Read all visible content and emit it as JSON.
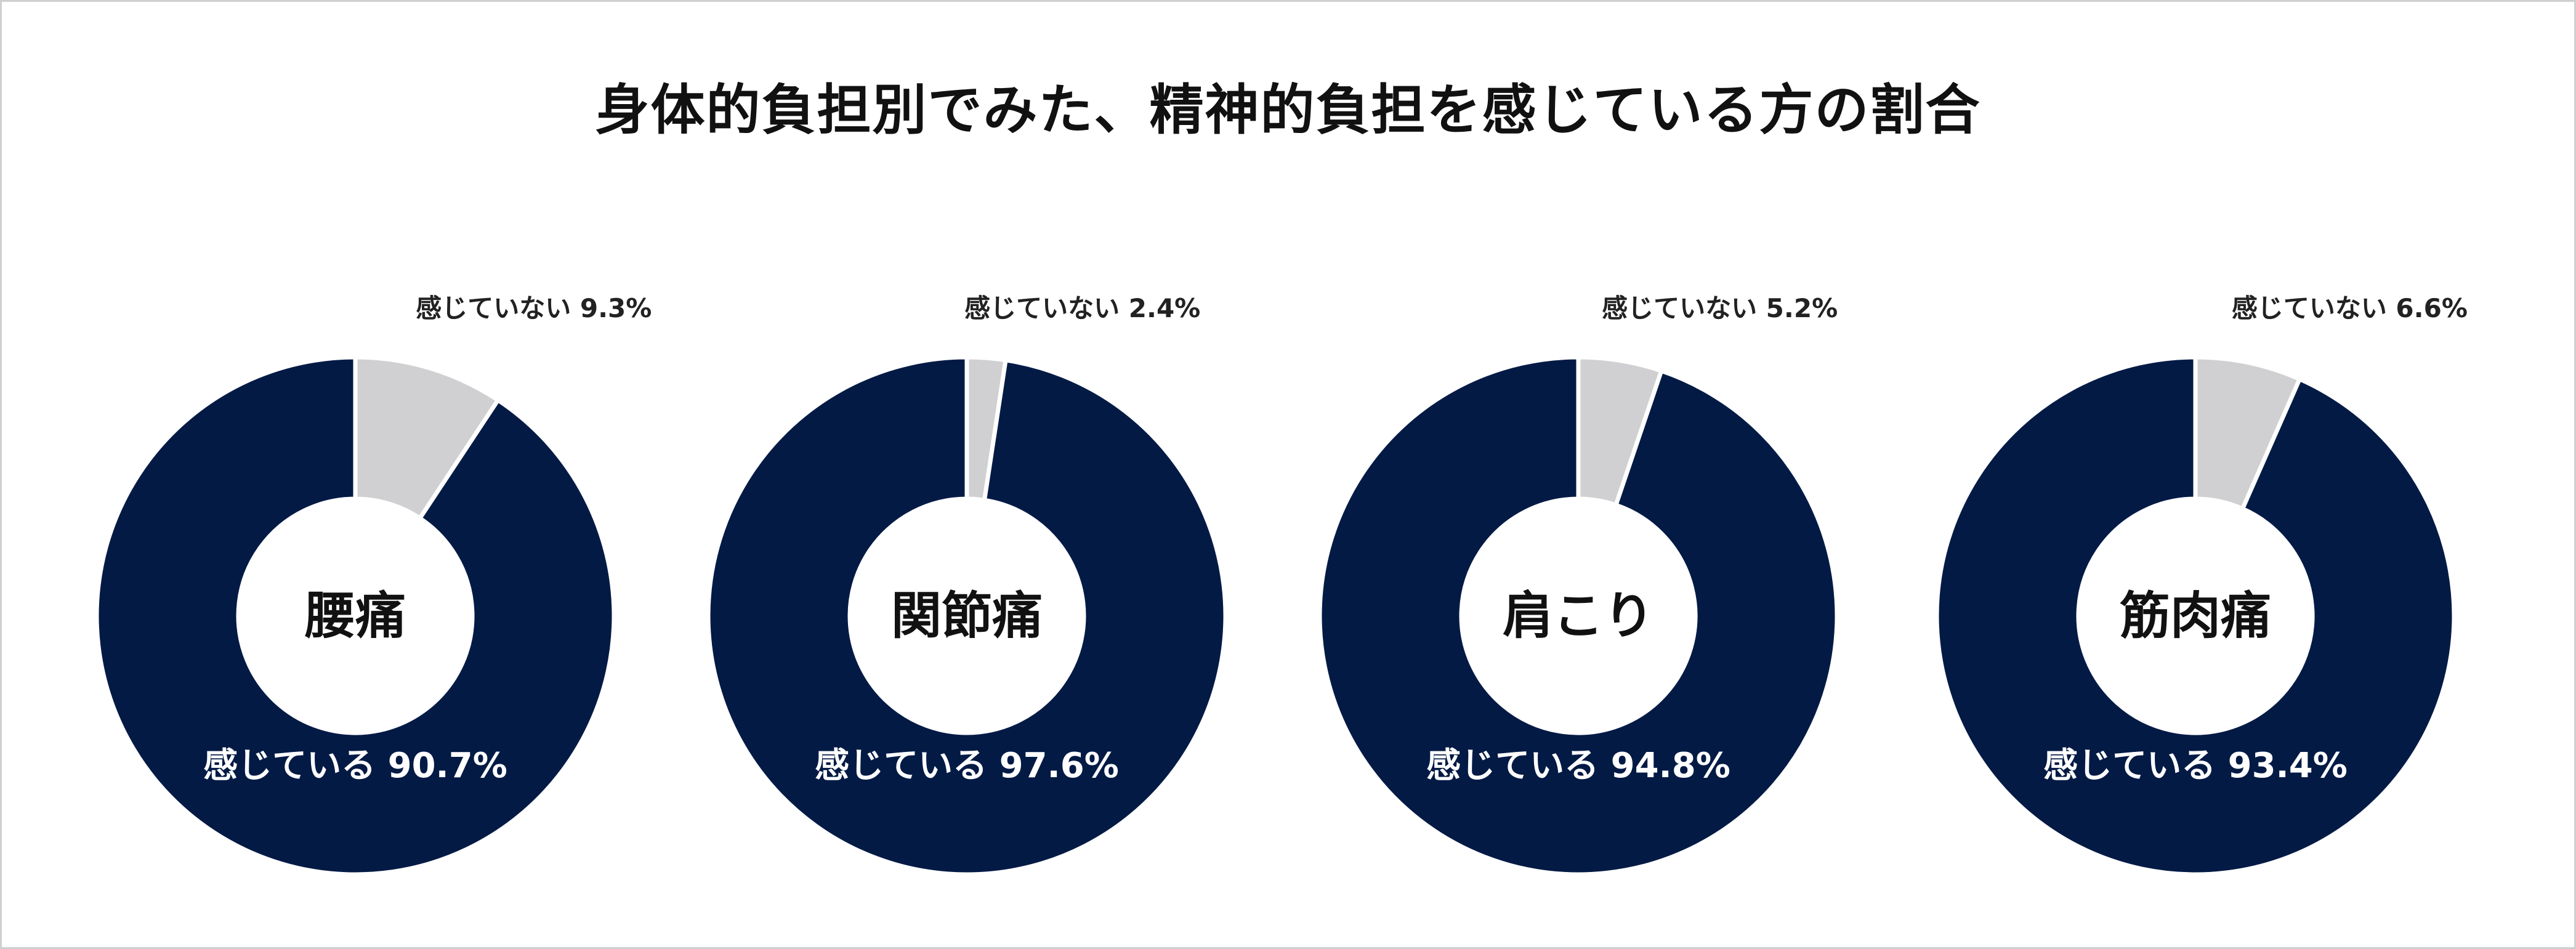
{
  "title": "身体的負担別でみた、精神的負担を感じている方の割合",
  "colors": {
    "felt": "#031a45",
    "not_felt": "#d0cfd1",
    "separator": "#ffffff"
  },
  "chart_data": [
    {
      "type": "pie",
      "title": "腰痛",
      "slices": [
        {
          "name": "感じていない",
          "value": 9.3,
          "label": "感じていない 9.3%"
        },
        {
          "name": "感じている",
          "value": 90.7,
          "label": "感じている 90.7%"
        }
      ]
    },
    {
      "type": "pie",
      "title": "関節痛",
      "slices": [
        {
          "name": "感じていない",
          "value": 2.4,
          "label": "感じていない 2.4%"
        },
        {
          "name": "感じている",
          "value": 97.6,
          "label": "感じている 97.6%"
        }
      ]
    },
    {
      "type": "pie",
      "title": "肩こり",
      "slices": [
        {
          "name": "感じていない",
          "value": 5.2,
          "label": "感じていない 5.2%"
        },
        {
          "name": "感じている",
          "value": 94.8,
          "label": "感じている 94.8%"
        }
      ]
    },
    {
      "type": "pie",
      "title": "筋肉痛",
      "slices": [
        {
          "name": "感じていない",
          "value": 6.6,
          "label": "感じていない 6.6%"
        },
        {
          "name": "感じている",
          "value": 93.4,
          "label": "感じている 93.4%"
        }
      ]
    }
  ]
}
